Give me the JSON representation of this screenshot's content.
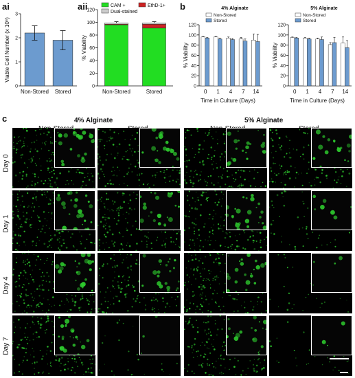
{
  "panels": {
    "ai": "ai",
    "aii": "aii",
    "b": "b",
    "c": "c"
  },
  "chart_data": [
    {
      "id": "ai",
      "type": "bar",
      "categories": [
        "Non-Stored",
        "Stored"
      ],
      "values": [
        2.2,
        1.9
      ],
      "errors": [
        0.3,
        0.4
      ],
      "ylabel": "Viable Cell Number (x 10⁶)",
      "ylim": [
        0,
        3
      ],
      "yticks": [
        "0",
        "1",
        "2",
        "3"
      ],
      "color": "#6c9bcf"
    },
    {
      "id": "aii",
      "type": "bar",
      "stacked": true,
      "categories": [
        "Non-Stored",
        "Stored"
      ],
      "series": [
        {
          "name": "CAM +",
          "values": [
            96,
            91
          ],
          "color": "#22dd22"
        },
        {
          "name": "EthD-1+",
          "values": [
            1,
            6
          ],
          "color": "#cc2222"
        },
        {
          "name": "Dual-stained",
          "values": [
            2,
            2
          ],
          "color": "#cccccc"
        }
      ],
      "ylabel": "% Viability",
      "ylim": [
        0,
        120
      ],
      "yticks": [
        "0",
        "20",
        "40",
        "60",
        "80",
        "100",
        "120"
      ],
      "legend": "top"
    },
    {
      "id": "b1",
      "type": "bar",
      "title": "4% Alginate",
      "categories": [
        "0",
        "1",
        "4",
        "7",
        "14"
      ],
      "series": [
        {
          "name": "Non-Stored",
          "values": [
            96,
            96,
            94,
            92,
            90
          ],
          "errors": [
            1,
            1,
            2,
            3,
            12
          ],
          "color": "#ffffff"
        },
        {
          "name": "Stored",
          "values": [
            94,
            92,
            91,
            88,
            87
          ],
          "errors": [
            1,
            2,
            2,
            4,
            14
          ],
          "color": "#6c9bcf"
        }
      ],
      "xlabel": "Time in Culture (Days)",
      "ylabel": "% Viability",
      "ylim": [
        0,
        120
      ],
      "yticks": [
        "0",
        "20",
        "40",
        "60",
        "80",
        "100",
        "120"
      ],
      "legend": "top"
    },
    {
      "id": "b2",
      "type": "bar",
      "title": "5% Alginate",
      "categories": [
        "0",
        "1",
        "4",
        "7",
        "14"
      ],
      "series": [
        {
          "name": "Non-Stored",
          "values": [
            95,
            94,
            92,
            81,
            84
          ],
          "errors": [
            1,
            1,
            2,
            4,
            12
          ],
          "color": "#ffffff"
        },
        {
          "name": "Stored",
          "values": [
            94,
            92,
            91,
            85,
            75
          ],
          "errors": [
            1,
            2,
            5,
            10,
            14
          ],
          "color": "#6c9bcf"
        }
      ],
      "xlabel": "Time in Culture (Days)",
      "ylabel": "% Viability",
      "ylim": [
        0,
        120
      ],
      "yticks": [
        "0",
        "20",
        "40",
        "60",
        "80",
        "100",
        "120"
      ],
      "legend": "top"
    }
  ],
  "micrographs": {
    "groups": [
      "4% Alginate",
      "5% Alginate"
    ],
    "columns": [
      "Non-Stored",
      "Stored",
      "Non-Stored",
      "Stored"
    ],
    "rows": [
      "Day 0",
      "Day 1",
      "Day 4",
      "Day 7"
    ],
    "density": [
      [
        0.9,
        0.75,
        0.8,
        0.6
      ],
      [
        0.9,
        0.8,
        0.85,
        0.25
      ],
      [
        0.85,
        0.75,
        0.8,
        0.15
      ],
      [
        0.85,
        0.12,
        0.7,
        0.12
      ]
    ],
    "fluorescence_color": "#2ecc2e"
  }
}
